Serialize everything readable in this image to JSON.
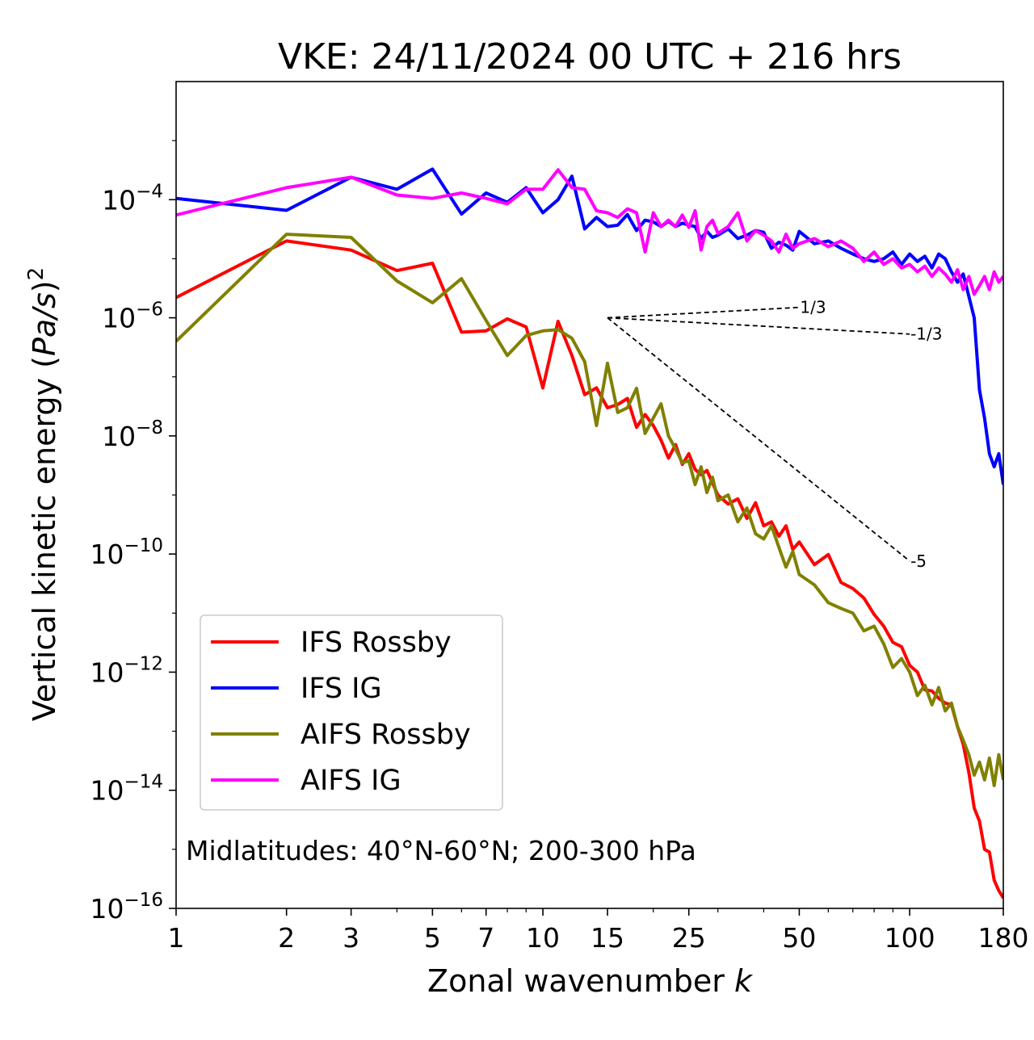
{
  "chart_data": {
    "type": "line",
    "title": "VKE: 24/11/2024 00 UTC + 216 hrs",
    "xlabel": "Zonal wavenumber ",
    "xlabel_italic": "k",
    "ylabel_main": "Vertical kinetic energy (",
    "ylabel_unit": "Pa/s",
    "ylabel_close": ")",
    "ylabel_exp": "2",
    "xscale": "log",
    "yscale": "log",
    "xlim": [
      1,
      180
    ],
    "ylim": [
      1e-16,
      0.01
    ],
    "xticks": [
      {
        "value": 1,
        "label": "1"
      },
      {
        "value": 2,
        "label": "2"
      },
      {
        "value": 3,
        "label": "3"
      },
      {
        "value": 5,
        "label": "5"
      },
      {
        "value": 7,
        "label": "7"
      },
      {
        "value": 10,
        "label": "10"
      },
      {
        "value": 15,
        "label": "15"
      },
      {
        "value": 25,
        "label": "25"
      },
      {
        "value": 50,
        "label": "50"
      },
      {
        "value": 100,
        "label": "100"
      },
      {
        "value": 180,
        "label": "180"
      }
    ],
    "yticks": [
      {
        "value": 0.0001,
        "base": "10",
        "exp": "−4"
      },
      {
        "value": 1e-06,
        "base": "10",
        "exp": "−6"
      },
      {
        "value": 1e-08,
        "base": "10",
        "exp": "−8"
      },
      {
        "value": 1e-10,
        "base": "10",
        "exp": "−10"
      },
      {
        "value": 1e-12,
        "base": "10",
        "exp": "−12"
      },
      {
        "value": 1e-14,
        "base": "10",
        "exp": "−14"
      },
      {
        "value": 1e-16,
        "base": "10",
        "exp": "−16"
      }
    ],
    "legend_position": "lower-left",
    "annotation": "Midlatitudes: 40°N-60°N; 200-300 hPa",
    "reference_lines": [
      {
        "label": "1/3",
        "x": [
          15,
          50
        ],
        "y": [
          1e-06,
          1.5e-06
        ]
      },
      {
        "label": "-1/3",
        "x": [
          15,
          100
        ],
        "y": [
          1e-06,
          5.3e-07
        ]
      },
      {
        "label": "-5",
        "x": [
          15,
          100
        ],
        "y": [
          1e-06,
          7.6e-11
        ]
      }
    ],
    "series": [
      {
        "name": "IFS Rossby",
        "color": "#ff0000",
        "x": [
          1,
          2,
          3,
          4,
          5,
          6,
          7,
          8,
          9,
          10,
          11,
          12,
          13,
          14,
          15,
          16,
          17,
          18,
          19,
          20,
          21,
          22,
          23,
          24,
          25,
          26,
          27,
          28,
          29,
          30,
          32,
          34,
          36,
          38,
          40,
          42,
          44,
          46,
          48,
          50,
          55,
          60,
          65,
          70,
          75,
          80,
          85,
          90,
          95,
          100,
          105,
          110,
          115,
          120,
          125,
          130,
          135,
          140,
          145,
          150,
          155,
          160,
          165,
          170,
          175,
          180
        ],
        "y": [
          2.2e-06,
          2e-05,
          1.4e-05,
          6.3e-06,
          8.4e-06,
          5.7e-07,
          6e-07,
          9.6e-07,
          7e-07,
          6.5e-08,
          8.7e-07,
          2.3e-07,
          5e-08,
          6.5e-08,
          3e-08,
          3.4e-08,
          4.3e-08,
          1.4e-08,
          2.3e-08,
          1.5e-08,
          8.5e-09,
          4.2e-09,
          7.1e-09,
          3.3e-09,
          5e-09,
          2.7e-09,
          2.2e-09,
          2.6e-09,
          1.6e-09,
          1e-09,
          7e-10,
          8.6e-10,
          4e-10,
          7.4e-10,
          3e-10,
          3.5e-10,
          2e-10,
          3e-10,
          1.2e-10,
          1.6e-10,
          6.6e-11,
          9.8e-11,
          3.3e-11,
          2.6e-11,
          1.8e-11,
          9.5e-12,
          6e-12,
          3.2e-12,
          2.7e-12,
          1.3e-12,
          1e-12,
          5e-13,
          4.8e-13,
          3.6e-13,
          3e-13,
          2.8e-13,
          1.2e-13,
          6e-14,
          2e-14,
          5e-15,
          3e-15,
          1e-15,
          9e-16,
          3e-16,
          2e-16,
          1.5e-16
        ]
      },
      {
        "name": "IFS IG",
        "color": "#0000ff",
        "x": [
          1,
          2,
          3,
          4,
          5,
          6,
          7,
          8,
          9,
          10,
          11,
          12,
          13,
          14,
          15,
          16,
          17,
          18,
          19,
          20,
          21,
          22,
          23,
          24,
          25,
          26,
          27,
          28,
          29,
          30,
          32,
          34,
          36,
          38,
          40,
          42,
          44,
          46,
          48,
          50,
          55,
          60,
          65,
          70,
          75,
          80,
          85,
          90,
          95,
          100,
          105,
          110,
          115,
          120,
          125,
          130,
          135,
          140,
          145,
          150,
          155,
          160,
          165,
          170,
          175,
          180
        ],
        "y": [
          0.000105,
          6.6e-05,
          0.00024,
          0.00015,
          0.00033,
          5.7e-05,
          0.00013,
          9e-05,
          0.00016,
          6e-05,
          0.0001,
          0.00025,
          3.2e-05,
          5e-05,
          3.5e-05,
          3.7e-05,
          5.6e-05,
          3e-05,
          4.5e-05,
          4.2e-05,
          3.5e-05,
          4.3e-05,
          3.5e-05,
          4e-05,
          3.7e-05,
          3.5e-05,
          2.2e-05,
          2.9e-05,
          2.3e-05,
          2.5e-05,
          3.2e-05,
          2.2e-05,
          2.5e-05,
          3e-05,
          2.8e-05,
          1.5e-05,
          1.9e-05,
          1.7e-05,
          1.4e-05,
          2.9e-05,
          1.8e-05,
          2e-05,
          1.5e-05,
          1.2e-05,
          1e-05,
          9e-06,
          1e-05,
          1.3e-05,
          8e-06,
          1.2e-05,
          9e-06,
          1.1e-05,
          7e-06,
          1.2e-05,
          1e-05,
          6e-06,
          4e-06,
          5.5e-06,
          2.3e-06,
          1e-06,
          6e-08,
          2e-08,
          5e-09,
          3e-09,
          5e-09,
          1.5e-09
        ]
      },
      {
        "name": "AIFS Rossby",
        "color": "#808000",
        "x": [
          1,
          2,
          3,
          4,
          5,
          6,
          7,
          8,
          9,
          10,
          11,
          12,
          13,
          14,
          15,
          16,
          17,
          18,
          19,
          20,
          21,
          22,
          23,
          24,
          25,
          26,
          27,
          28,
          29,
          30,
          32,
          34,
          36,
          38,
          40,
          42,
          44,
          46,
          48,
          50,
          55,
          60,
          65,
          70,
          75,
          80,
          85,
          90,
          95,
          100,
          105,
          110,
          115,
          120,
          125,
          130,
          135,
          140,
          145,
          150,
          155,
          160,
          165,
          170,
          175,
          180
        ],
        "y": [
          4e-07,
          2.6e-05,
          2.3e-05,
          4.2e-06,
          1.8e-06,
          4.6e-06,
          9e-07,
          2.3e-07,
          5e-07,
          6e-07,
          6.3e-07,
          4.5e-07,
          1.8e-07,
          1.5e-08,
          1.7e-07,
          2.5e-08,
          3e-08,
          6.4e-08,
          1.1e-08,
          2e-08,
          3.5e-08,
          1e-08,
          6e-09,
          3.5e-09,
          3.8e-09,
          1.5e-09,
          3e-09,
          1.1e-09,
          2e-09,
          8e-10,
          1e-09,
          3.5e-10,
          6e-10,
          2.2e-10,
          1.8e-10,
          3e-10,
          1.3e-10,
          6e-11,
          1.1e-10,
          4.5e-11,
          3e-11,
          1.5e-11,
          1.2e-11,
          1e-11,
          5e-12,
          6e-12,
          3e-12,
          1.2e-12,
          1.7e-12,
          1e-12,
          4e-13,
          6e-13,
          2.8e-13,
          5.5e-13,
          2.2e-13,
          3e-13,
          1.2e-13,
          7e-14,
          4e-14,
          1.8e-14,
          3e-14,
          1.5e-14,
          3.5e-14,
          1.2e-14,
          4e-14,
          1.5e-14
        ]
      },
      {
        "name": "AIFS IG",
        "color": "#ff00ff",
        "x": [
          1,
          2,
          3,
          4,
          5,
          6,
          7,
          8,
          9,
          10,
          11,
          12,
          13,
          14,
          15,
          16,
          17,
          18,
          19,
          20,
          21,
          22,
          23,
          24,
          25,
          26,
          27,
          28,
          29,
          30,
          32,
          34,
          36,
          38,
          40,
          42,
          44,
          46,
          48,
          50,
          55,
          60,
          65,
          70,
          75,
          80,
          85,
          90,
          95,
          100,
          105,
          110,
          115,
          120,
          125,
          130,
          135,
          140,
          145,
          150,
          155,
          160,
          165,
          170,
          175,
          180
        ],
        "y": [
          5.5e-05,
          0.00016,
          0.00024,
          0.00012,
          0.000105,
          0.00013,
          0.000105,
          8.5e-05,
          0.00015,
          0.00015,
          0.00032,
          0.00016,
          0.00015,
          6.5e-05,
          6e-05,
          5e-05,
          7e-05,
          6e-05,
          1.3e-05,
          6e-05,
          3.5e-05,
          4.5e-05,
          3.5e-05,
          5.5e-05,
          3.4e-05,
          6.5e-05,
          1.4e-05,
          3.5e-05,
          4.5e-05,
          2.7e-05,
          3.5e-05,
          6e-05,
          2e-05,
          3e-05,
          2.5e-05,
          2e-05,
          1.3e-05,
          2.6e-05,
          1.5e-05,
          1.8e-05,
          2.2e-05,
          1.6e-05,
          2e-05,
          1.5e-05,
          9e-06,
          1.3e-05,
          8e-06,
          1e-05,
          7e-06,
          8e-06,
          6e-06,
          7.5e-06,
          5e-06,
          7e-06,
          5.5e-06,
          4e-06,
          6.5e-06,
          3e-06,
          5e-06,
          2.5e-06,
          3.5e-06,
          5e-06,
          3e-06,
          6e-06,
          4e-06,
          5e-06
        ]
      }
    ]
  }
}
